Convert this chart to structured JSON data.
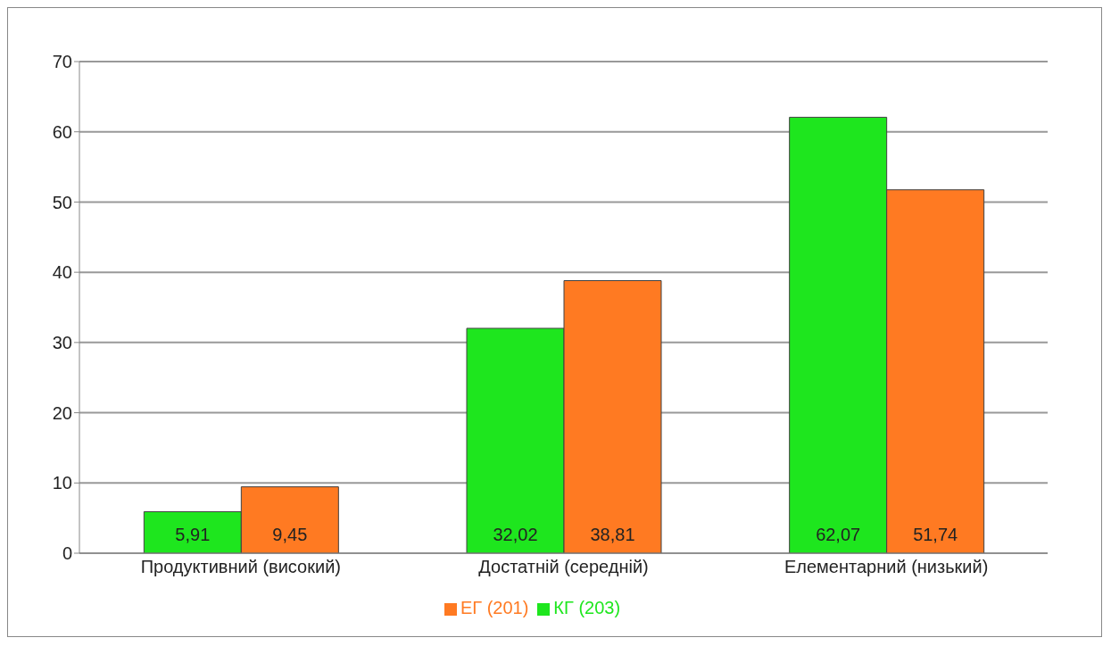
{
  "chart_data": {
    "type": "bar",
    "categories": [
      "Продуктивний (високий)",
      "Достатній (середній)",
      "Елементарний (низький)"
    ],
    "series": [
      {
        "name": "КГ (203)",
        "color": "#1ee61e",
        "values": [
          5.91,
          32.02,
          62.07
        ],
        "value_labels": [
          "5,91",
          "32,02",
          "62,07"
        ]
      },
      {
        "name": "ЕГ (201)",
        "color": "#ff7a22",
        "values": [
          9.45,
          38.81,
          51.74
        ],
        "value_labels": [
          "9,45",
          "38,81",
          "51,74"
        ]
      }
    ],
    "ylim": [
      0,
      70
    ],
    "yticks": [
      0,
      10,
      20,
      30,
      40,
      50,
      60,
      70
    ],
    "grid": "y",
    "legend": "bottom"
  }
}
